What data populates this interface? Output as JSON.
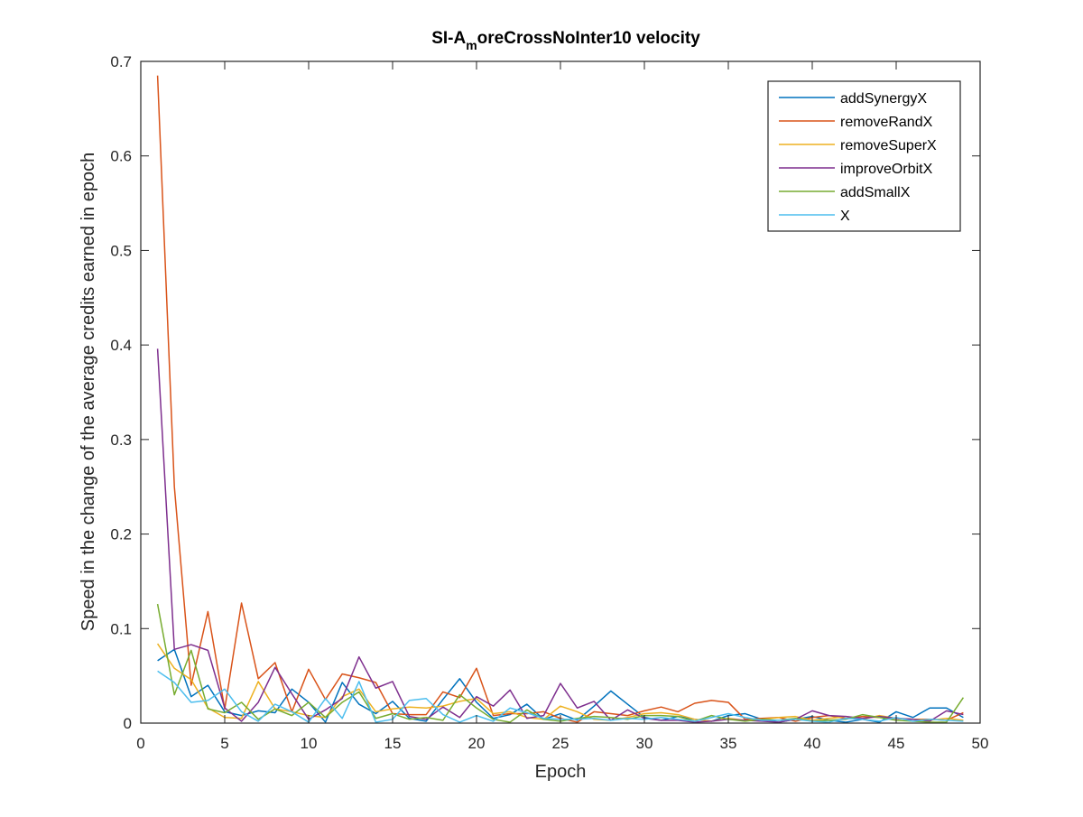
{
  "chart_data": {
    "type": "line",
    "title": {
      "prefix": "SI-A",
      "subscript": "m",
      "suffix": "oreCrossNoInter10 velocity"
    },
    "xlabel": "Epoch",
    "ylabel": "Speed in the change of the average credits earned in epoch",
    "xlim": [
      0,
      50
    ],
    "ylim": [
      0,
      0.7
    ],
    "xticks": [
      0,
      5,
      10,
      15,
      20,
      25,
      30,
      35,
      40,
      45,
      50
    ],
    "xtick_labels": [
      "0",
      "5",
      "10",
      "15",
      "20",
      "25",
      "30",
      "35",
      "40",
      "45",
      "50"
    ],
    "yticks": [
      0,
      0.1,
      0.2,
      0.3,
      0.4,
      0.5,
      0.6,
      0.7
    ],
    "ytick_labels": [
      "0",
      "0.1",
      "0.2",
      "0.3",
      "0.4",
      "0.5",
      "0.6",
      "0.7"
    ],
    "grid": false,
    "legend_position": "top-right",
    "x": [
      1,
      2,
      3,
      4,
      5,
      6,
      7,
      8,
      9,
      10,
      11,
      12,
      13,
      14,
      15,
      16,
      17,
      18,
      19,
      20,
      21,
      22,
      23,
      24,
      25,
      26,
      27,
      28,
      29,
      30,
      31,
      32,
      33,
      34,
      35,
      36,
      37,
      38,
      39,
      40,
      41,
      42,
      43,
      44,
      45,
      46,
      47,
      48,
      49
    ],
    "series": [
      {
        "name": "addSynergyX",
        "color": "#0072BD",
        "values": [
          0.066,
          0.078,
          0.028,
          0.04,
          0.012,
          0.008,
          0.013,
          0.011,
          0.036,
          0.022,
          0.001,
          0.043,
          0.02,
          0.01,
          0.023,
          0.005,
          0.002,
          0.025,
          0.047,
          0.022,
          0.005,
          0.009,
          0.02,
          0.004,
          0.01,
          0.003,
          0.018,
          0.034,
          0.02,
          0.006,
          0.003,
          0.007,
          0.004,
          0.002,
          0.008,
          0.01,
          0.004,
          0.001,
          0.004,
          0.007,
          0.003,
          0.001,
          0.004,
          0.001,
          0.012,
          0.006,
          0.016,
          0.016,
          0.006
        ]
      },
      {
        "name": "removeRandX",
        "color": "#D95319",
        "values": [
          0.685,
          0.25,
          0.04,
          0.118,
          0.015,
          0.127,
          0.047,
          0.064,
          0.012,
          0.057,
          0.025,
          0.052,
          0.048,
          0.043,
          0.01,
          0.009,
          0.009,
          0.033,
          0.027,
          0.058,
          0.008,
          0.01,
          0.01,
          0.012,
          0.005,
          0.001,
          0.012,
          0.01,
          0.008,
          0.013,
          0.017,
          0.012,
          0.021,
          0.024,
          0.022,
          0.004,
          0.005,
          0.006,
          0.002,
          0.006,
          0.008,
          0.005,
          0.007,
          0.006,
          0.005,
          0.004,
          0.004,
          0.003,
          0.011
        ]
      },
      {
        "name": "removeSuperX",
        "color": "#EDB120",
        "values": [
          0.084,
          0.058,
          0.046,
          0.016,
          0.006,
          0.005,
          0.044,
          0.015,
          0.012,
          0.008,
          0.006,
          0.028,
          0.036,
          0.012,
          0.015,
          0.017,
          0.016,
          0.018,
          0.023,
          0.026,
          0.01,
          0.012,
          0.006,
          0.004,
          0.018,
          0.012,
          0.004,
          0.003,
          0.006,
          0.01,
          0.011,
          0.009,
          0.004,
          0.002,
          0.005,
          0.003,
          0.004,
          0.006,
          0.007,
          0.003,
          0.005,
          0.007,
          0.004,
          0.008,
          0.005,
          0.004,
          0.003,
          0.005,
          0.003
        ]
      },
      {
        "name": "improveOrbitX",
        "color": "#7E2F8E",
        "values": [
          0.396,
          0.078,
          0.083,
          0.077,
          0.016,
          0.002,
          0.022,
          0.059,
          0.031,
          0.004,
          0.014,
          0.026,
          0.07,
          0.037,
          0.044,
          0.007,
          0.004,
          0.017,
          0.006,
          0.028,
          0.018,
          0.035,
          0.005,
          0.008,
          0.042,
          0.016,
          0.023,
          0.003,
          0.014,
          0.005,
          0.003,
          0.003,
          0.001,
          0.002,
          0.004,
          0.003,
          0.002,
          0.001,
          0.004,
          0.013,
          0.008,
          0.007,
          0.005,
          0.007,
          0.005,
          0.004,
          0.002,
          0.013,
          0.009
        ]
      },
      {
        "name": "addSmallX",
        "color": "#77AC30",
        "values": [
          0.126,
          0.03,
          0.077,
          0.015,
          0.011,
          0.022,
          0.004,
          0.015,
          0.008,
          0.022,
          0.006,
          0.022,
          0.033,
          0.005,
          0.01,
          0.004,
          0.006,
          0.003,
          0.03,
          0.016,
          0.004,
          0.001,
          0.014,
          0.004,
          0.002,
          0.005,
          0.007,
          0.006,
          0.004,
          0.008,
          0.008,
          0.007,
          0.002,
          0.008,
          0.004,
          0.002,
          0.004,
          0.003,
          0.005,
          0.002,
          0.003,
          0.004,
          0.009,
          0.006,
          0.003,
          0.002,
          0.001,
          0.001,
          0.027
        ]
      },
      {
        "name": "X",
        "color": "#4DBEEE",
        "values": [
          0.055,
          0.043,
          0.022,
          0.024,
          0.036,
          0.012,
          0.002,
          0.02,
          0.012,
          0.001,
          0.026,
          0.005,
          0.044,
          0.001,
          0.004,
          0.024,
          0.026,
          0.009,
          0.001,
          0.008,
          0.002,
          0.016,
          0.011,
          0.005,
          0.004,
          0.004,
          0.005,
          0.003,
          0.005,
          0.004,
          0.006,
          0.004,
          0.002,
          0.006,
          0.01,
          0.006,
          0.003,
          0.003,
          0.004,
          0.002,
          0.001,
          0.005,
          0.004,
          0.002,
          0.006,
          0.002,
          0.004,
          0.003,
          0.002
        ]
      }
    ]
  }
}
